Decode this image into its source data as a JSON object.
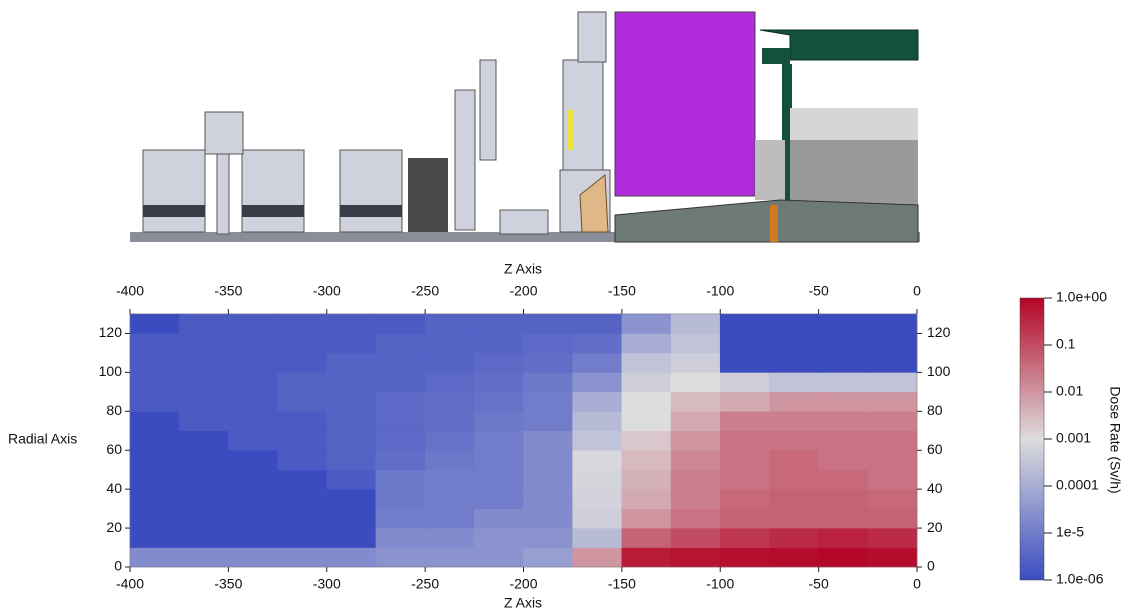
{
  "chart_data": {
    "type": "heatmap",
    "xlabel": "Z Axis",
    "ylabel": "Radial Axis",
    "xlim": [
      -400,
      0
    ],
    "ylim": [
      0,
      130
    ],
    "xticks": [
      -400,
      -350,
      -300,
      -250,
      -200,
      -150,
      -100,
      -50,
      0
    ],
    "yticks": [
      0,
      20,
      40,
      60,
      80,
      100,
      120
    ],
    "xbins": [
      -400,
      -375,
      -350,
      -325,
      -300,
      -275,
      -250,
      -225,
      -200,
      -175,
      -150,
      -125,
      -100,
      -75,
      -50,
      -25,
      0
    ],
    "ybins": [
      0,
      10,
      20,
      30,
      40,
      50,
      60,
      70,
      80,
      90,
      100,
      110,
      120,
      130
    ],
    "values": [
      [
        2e-05,
        2e-05,
        2e-05,
        2e-05,
        2e-05,
        3e-05,
        3e-05,
        3e-05,
        5e-05,
        0.01,
        0.5,
        0.6,
        0.7,
        0.8,
        0.9,
        0.8
      ],
      [
        1e-06,
        1e-06,
        1e-06,
        1e-06,
        1e-06,
        2e-05,
        2e-05,
        3e-05,
        3e-05,
        0.0002,
        0.05,
        0.1,
        0.2,
        0.3,
        0.4,
        0.3
      ],
      [
        1e-06,
        1e-06,
        1e-06,
        1e-06,
        1e-06,
        1e-05,
        1e-05,
        2e-05,
        2e-05,
        0.0005,
        0.01,
        0.03,
        0.05,
        0.05,
        0.05,
        0.05
      ],
      [
        1e-06,
        1e-06,
        1e-06,
        1e-06,
        1e-06,
        8e-06,
        1e-05,
        1e-05,
        2e-05,
        0.0006,
        0.005,
        0.02,
        0.04,
        0.05,
        0.05,
        0.04
      ],
      [
        1e-06,
        1e-06,
        1e-06,
        1e-06,
        2e-06,
        8e-06,
        1e-05,
        1e-05,
        2e-05,
        0.0007,
        0.004,
        0.02,
        0.03,
        0.04,
        0.04,
        0.03
      ],
      [
        1e-06,
        1e-06,
        1e-06,
        2e-06,
        3e-06,
        5e-06,
        8e-06,
        1e-05,
        2e-05,
        0.0008,
        0.003,
        0.015,
        0.03,
        0.04,
        0.03,
        0.03
      ],
      [
        1e-06,
        1e-06,
        2e-06,
        2e-06,
        3e-06,
        4e-06,
        6e-06,
        1e-05,
        2e-05,
        0.0003,
        0.002,
        0.01,
        0.03,
        0.03,
        0.03,
        0.03
      ],
      [
        1e-06,
        2e-06,
        2e-06,
        2e-06,
        3e-06,
        4e-06,
        5e-06,
        8e-06,
        1e-05,
        0.0002,
        0.001,
        0.005,
        0.02,
        0.02,
        0.02,
        0.02
      ],
      [
        2e-06,
        2e-06,
        2e-06,
        3e-06,
        3e-06,
        4e-06,
        5e-06,
        6e-06,
        1e-05,
        0.0001,
        0.001,
        0.003,
        0.005,
        0.01,
        0.01,
        0.01
      ],
      [
        2e-06,
        2e-06,
        2e-06,
        3e-06,
        3e-06,
        3e-06,
        4e-06,
        5e-06,
        8e-06,
        3e-05,
        0.0005,
        0.001,
        0.0005,
        0.0003,
        0.0003,
        0.0003
      ],
      [
        2e-06,
        2e-06,
        2e-06,
        2e-06,
        3e-06,
        3e-06,
        3e-06,
        4e-06,
        5e-06,
        1e-05,
        0.0003,
        0.0005,
        1e-06,
        1e-06,
        1e-06,
        1e-06
      ],
      [
        2e-06,
        2e-06,
        2e-06,
        2e-06,
        2e-06,
        3e-06,
        3e-06,
        3e-06,
        4e-06,
        5e-06,
        0.0001,
        0.0003,
        1e-06,
        1e-06,
        1e-06,
        1e-06
      ],
      [
        1e-06,
        2e-06,
        2e-06,
        2e-06,
        2e-06,
        2e-06,
        3e-06,
        3e-06,
        3e-06,
        3e-06,
        3e-05,
        0.0002,
        1e-06,
        1e-06,
        1e-06,
        1e-06
      ]
    ],
    "colorbar": {
      "label": "Dose Rate (Sv/h)",
      "lim": [
        1e-06,
        1
      ],
      "log": true,
      "colors": [
        "#3b4cc0",
        "#dddddd",
        "#b40426"
      ],
      "ticks": [
        {
          "value": 1,
          "label": "1.0e+00"
        },
        0.1,
        0.01,
        0.001,
        0.0001,
        {
          "value": 1e-05,
          "label": "1e-5"
        },
        {
          "value": 1e-06,
          "label": "1.0e-06"
        }
      ]
    }
  }
}
